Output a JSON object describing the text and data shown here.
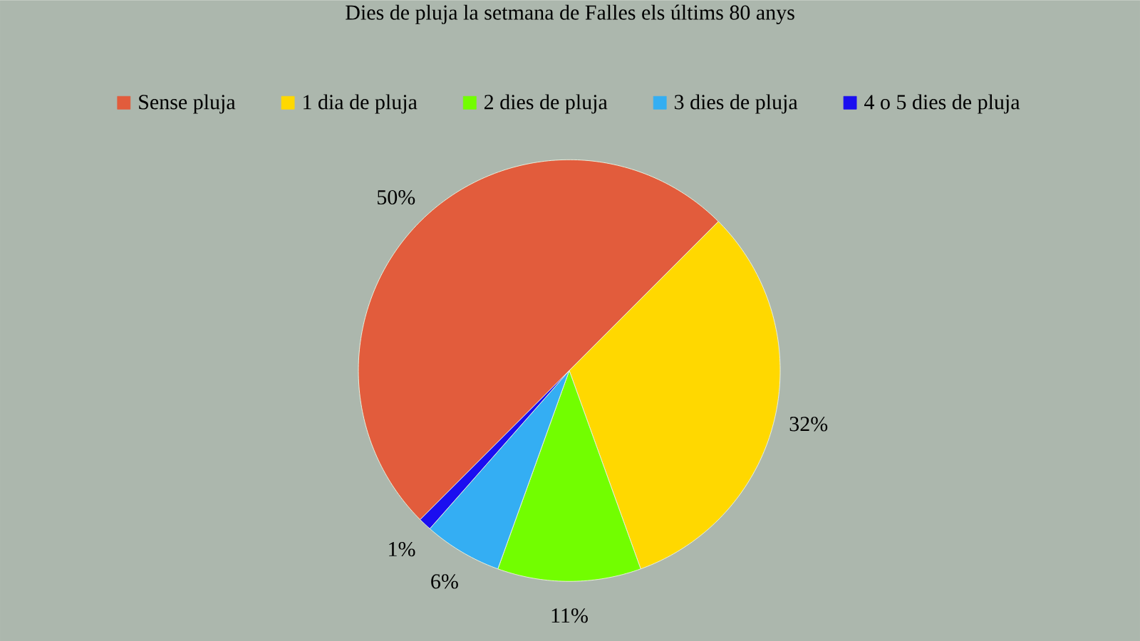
{
  "chart_data": {
    "type": "pie",
    "title": "Dies de pluja la setmana de Falles els últims 80 anys",
    "categories": [
      "Sense pluja",
      "1 dia de pluja",
      "2 dies de pluja",
      "3 dies de pluja",
      "4 o 5 dies de pluja"
    ],
    "values": [
      50,
      32,
      11,
      6,
      1
    ],
    "colors": [
      "#e25c3c",
      "#ffd800",
      "#72fe00",
      "#34aef3",
      "#1b0ef0"
    ],
    "value_labels": [
      "50%",
      "32%",
      "11%",
      "6%",
      "1%"
    ],
    "legend": "top"
  }
}
